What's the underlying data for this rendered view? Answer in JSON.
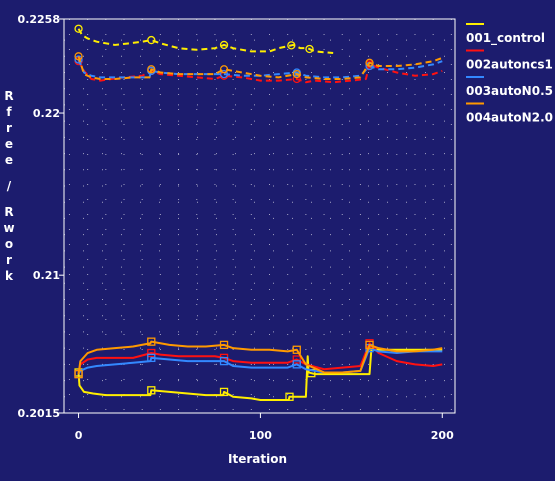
{
  "chart_data": {
    "type": "line",
    "title": "",
    "xlabel": "Iteration",
    "ylabel": "Rfree / Rwork",
    "xlim": [
      -8,
      207
    ],
    "ylim": [
      0.2015,
      0.2258
    ],
    "x_ticks": [
      0,
      100,
      200
    ],
    "y_ticks": [
      0.2015,
      0.21,
      0.22,
      0.2258
    ],
    "y_tick_labels": [
      "0.2015",
      "0.21",
      "0.22",
      "0.2258"
    ],
    "grid": true,
    "legend_position": "right",
    "series": [
      {
        "name": "001_control",
        "color": "#ffee00",
        "rfree": {
          "x": [
            0,
            2,
            5,
            10,
            15,
            20,
            28,
            35,
            40,
            45,
            55,
            65,
            75,
            80,
            85,
            95,
            105,
            110,
            118,
            122,
            126,
            130,
            140
          ],
          "y": [
            0.2252,
            0.2248,
            0.2246,
            0.2244,
            0.2243,
            0.2242,
            0.2243,
            0.2244,
            0.2245,
            0.2243,
            0.224,
            0.2239,
            0.224,
            0.2242,
            0.224,
            0.2238,
            0.2238,
            0.224,
            0.2242,
            0.224,
            0.224,
            0.2238,
            0.2237
          ],
          "markers": [
            0,
            40,
            80,
            117,
            127
          ]
        },
        "rwork": {
          "x": [
            0,
            0.5,
            3,
            8,
            15,
            25,
            39.5,
            40,
            50,
            60,
            70,
            79.5,
            80,
            85,
            95,
            100,
            110,
            115.5,
            116,
            125,
            126,
            126.5,
            130,
            160,
            161,
            200
          ],
          "y": [
            0.204,
            0.2032,
            0.2028,
            0.2027,
            0.2026,
            0.2026,
            0.2026,
            0.2029,
            0.2028,
            0.2027,
            0.2026,
            0.2026,
            0.2028,
            0.2025,
            0.2024,
            0.2023,
            0.2023,
            0.2023,
            0.2025,
            0.2025,
            0.205,
            0.204,
            0.2039,
            0.2039,
            0.2054,
            0.2054
          ],
          "markers": [
            0,
            40,
            80,
            116,
            128
          ]
        }
      },
      {
        "name": "002autoncs1",
        "color": "#ff1111",
        "rfree": {
          "x": [
            0,
            3,
            7,
            12,
            18,
            25,
            35,
            40,
            45,
            55,
            65,
            75,
            80,
            90,
            100,
            110,
            120,
            125,
            130,
            140,
            150,
            158,
            160,
            165,
            175,
            185,
            195,
            200
          ],
          "y": [
            0.2232,
            0.2226,
            0.2221,
            0.222,
            0.2221,
            0.2222,
            0.2223,
            0.2226,
            0.2224,
            0.2223,
            0.2222,
            0.2221,
            0.2223,
            0.2222,
            0.222,
            0.222,
            0.2221,
            0.2219,
            0.222,
            0.2219,
            0.222,
            0.2221,
            0.223,
            0.2228,
            0.2225,
            0.2223,
            0.2224,
            0.2226
          ],
          "markers": [
            0,
            40,
            80,
            120,
            160
          ]
        },
        "rwork": {
          "x": [
            0,
            1,
            5,
            10,
            20,
            30,
            40,
            45,
            55,
            65,
            75,
            80,
            85,
            95,
            105,
            115,
            120,
            125,
            135,
            145,
            155,
            160,
            165,
            175,
            185,
            195,
            200
          ],
          "y": [
            0.2039,
            0.2045,
            0.2048,
            0.2049,
            0.2049,
            0.2049,
            0.2052,
            0.2051,
            0.205,
            0.205,
            0.205,
            0.2049,
            0.2047,
            0.2046,
            0.2046,
            0.2046,
            0.2048,
            0.2045,
            0.2042,
            0.2043,
            0.2044,
            0.2058,
            0.2052,
            0.2047,
            0.2045,
            0.2044,
            0.2045
          ],
          "markers": [
            0,
            40,
            80,
            120,
            160
          ]
        }
      },
      {
        "name": "003autoN0.5",
        "color": "#3388ff",
        "rfree": {
          "x": [
            0,
            3,
            7,
            12,
            20,
            30,
            39,
            40,
            45,
            55,
            65,
            75,
            80,
            90,
            100,
            110,
            120,
            125,
            135,
            145,
            155,
            160,
            165,
            175,
            185,
            195,
            200
          ],
          "y": [
            0.2233,
            0.2225,
            0.2223,
            0.2222,
            0.2222,
            0.2222,
            0.2222,
            0.2226,
            0.2225,
            0.2224,
            0.2224,
            0.2224,
            0.2224,
            0.2223,
            0.2223,
            0.2224,
            0.2225,
            0.2223,
            0.2222,
            0.2222,
            0.2223,
            0.2229,
            0.2227,
            0.2227,
            0.2228,
            0.223,
            0.2232
          ],
          "markers": [
            0,
            40,
            80,
            120,
            160
          ]
        },
        "rwork": {
          "x": [
            0,
            1,
            5,
            10,
            20,
            30,
            39.5,
            40,
            50,
            60,
            70,
            80,
            85,
            95,
            105,
            115,
            120,
            125,
            135,
            145,
            155,
            160,
            165,
            175,
            185,
            195,
            200
          ],
          "y": [
            0.2039,
            0.2041,
            0.2043,
            0.2044,
            0.2045,
            0.2046,
            0.2047,
            0.2049,
            0.2048,
            0.2047,
            0.2047,
            0.2047,
            0.2044,
            0.2043,
            0.2043,
            0.2043,
            0.2045,
            0.2042,
            0.204,
            0.204,
            0.2041,
            0.2055,
            0.2053,
            0.2052,
            0.2053,
            0.2053,
            0.2053
          ],
          "markers": [
            0,
            40,
            80,
            120,
            160
          ]
        }
      },
      {
        "name": "004autoN2.0",
        "color": "#ff9900",
        "rfree": {
          "x": [
            0,
            3,
            7,
            12,
            20,
            30,
            39,
            40,
            45,
            55,
            65,
            75,
            80,
            90,
            100,
            110,
            120,
            125,
            135,
            145,
            155,
            160,
            165,
            175,
            185,
            195,
            200
          ],
          "y": [
            0.2235,
            0.2224,
            0.2222,
            0.2221,
            0.2221,
            0.2222,
            0.2222,
            0.2227,
            0.2225,
            0.2224,
            0.2224,
            0.2224,
            0.2227,
            0.2225,
            0.2223,
            0.2222,
            0.2224,
            0.2222,
            0.2221,
            0.2221,
            0.2222,
            0.2231,
            0.2229,
            0.2229,
            0.223,
            0.2232,
            0.2234
          ],
          "markers": [
            0,
            40,
            80,
            120,
            160
          ]
        },
        "rwork": {
          "x": [
            0,
            1,
            5,
            10,
            20,
            30,
            39.5,
            40,
            50,
            60,
            70,
            80,
            85,
            95,
            105,
            115,
            120,
            125,
            135,
            145,
            155,
            160,
            165,
            175,
            185,
            195,
            200
          ],
          "y": [
            0.2039,
            0.2047,
            0.2052,
            0.2054,
            0.2055,
            0.2056,
            0.2058,
            0.2059,
            0.2057,
            0.2056,
            0.2056,
            0.2057,
            0.2055,
            0.2054,
            0.2054,
            0.2053,
            0.2054,
            0.2045,
            0.204,
            0.204,
            0.2041,
            0.2057,
            0.2055,
            0.2053,
            0.2053,
            0.2054,
            0.2055
          ],
          "markers": [
            0,
            40,
            80,
            120,
            160
          ]
        }
      }
    ]
  }
}
